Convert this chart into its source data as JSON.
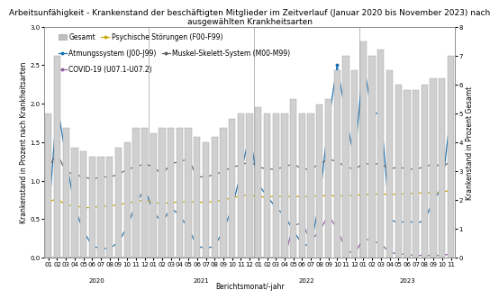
{
  "title": "Arbeitsunfähigkeit - Krankenstand der beschäftigten Mitglieder im Zeitverlauf (Januar 2020 bis November 2023) nach\nausgewählten Krankheitsarten",
  "xlabel": "Berichtsmonat/-jahr",
  "ylabel_left": "Krankenstand in Prozent nach Krankheitsarten",
  "ylabel_right": "Krankenstand in Prozent Gesamt",
  "ylim_left": [
    0.0,
    3.0
  ],
  "ylim_right": [
    0.0,
    8.0
  ],
  "yticks_left": [
    0.0,
    0.5,
    1.0,
    1.5,
    2.0,
    2.5,
    3.0
  ],
  "yticks_right": [
    0.0,
    1.0,
    2.0,
    3.0,
    4.0,
    5.0,
    6.0,
    7.0,
    8.0
  ],
  "bar_color": "#d0d0d0",
  "bar_edge_color": "#a0a0a0",
  "line_atemung_color": "#1a6faf",
  "line_psychisch_color": "#c8a800",
  "line_muskel_color": "#606060",
  "line_covid_color": "#9060a0",
  "legend_gesamt_color": "#c0c0c0",
  "gesamt": [
    5.0,
    7.0,
    4.5,
    3.8,
    3.7,
    3.5,
    3.5,
    3.5,
    3.8,
    4.0,
    4.5,
    4.5,
    4.3,
    4.5,
    4.5,
    4.5,
    4.5,
    4.2,
    4.0,
    4.2,
    4.5,
    4.8,
    5.0,
    5.0,
    5.2,
    5.0,
    5.0,
    5.0,
    5.5,
    5.0,
    5.0,
    5.3,
    5.5,
    6.5,
    7.0,
    6.5,
    7.5,
    7.0,
    7.2,
    6.5,
    6.0,
    5.8,
    5.8,
    6.0,
    6.2,
    6.2,
    7.0
  ],
  "atemung": [
    0.5,
    2.0,
    1.3,
    0.65,
    0.35,
    0.15,
    0.12,
    0.12,
    0.2,
    0.4,
    0.7,
    0.9,
    0.6,
    0.45,
    0.65,
    0.55,
    0.38,
    0.15,
    0.12,
    0.15,
    0.35,
    0.65,
    1.1,
    1.6,
    0.95,
    0.8,
    0.65,
    0.55,
    0.35,
    0.18,
    0.15,
    0.75,
    1.75,
    2.5,
    1.85,
    1.25,
    2.55,
    1.85,
    1.9,
    0.5,
    0.45,
    0.48,
    0.45,
    0.48,
    0.75,
    0.9,
    1.9
  ],
  "psychisch": [
    0.72,
    0.77,
    0.68,
    0.68,
    0.65,
    0.65,
    0.67,
    0.67,
    0.69,
    0.71,
    0.73,
    0.75,
    0.72,
    0.7,
    0.72,
    0.72,
    0.73,
    0.72,
    0.72,
    0.73,
    0.75,
    0.78,
    0.8,
    0.82,
    0.79,
    0.79,
    0.8,
    0.79,
    0.8,
    0.79,
    0.8,
    0.8,
    0.81,
    0.8,
    0.81,
    0.81,
    0.82,
    0.82,
    0.83,
    0.82,
    0.83,
    0.83,
    0.84,
    0.84,
    0.85,
    0.85,
    0.88
  ],
  "muskel": [
    1.18,
    1.35,
    1.12,
    1.08,
    1.05,
    1.02,
    1.05,
    1.05,
    1.08,
    1.15,
    1.18,
    1.22,
    1.18,
    1.08,
    1.22,
    1.25,
    1.28,
    1.05,
    1.05,
    1.08,
    1.12,
    1.18,
    1.2,
    1.25,
    1.18,
    1.15,
    1.15,
    1.18,
    1.22,
    1.15,
    1.15,
    1.22,
    1.28,
    1.25,
    1.18,
    1.15,
    1.22,
    1.22,
    1.22,
    1.15,
    1.18,
    1.15,
    1.15,
    1.18,
    1.22,
    1.18,
    1.25
  ],
  "covid": [
    0.0,
    0.0,
    0.0,
    0.0,
    0.0,
    0.0,
    0.0,
    0.0,
    0.0,
    0.0,
    0.0,
    0.0,
    0.0,
    0.0,
    0.0,
    0.0,
    0.0,
    0.0,
    0.0,
    0.0,
    0.0,
    0.0,
    0.0,
    0.0,
    0.0,
    0.0,
    0.0,
    0.0,
    0.42,
    0.45,
    0.22,
    0.35,
    0.55,
    0.38,
    0.1,
    0.05,
    0.25,
    0.22,
    0.18,
    0.07,
    0.05,
    0.04,
    0.03,
    0.03,
    0.03,
    0.03,
    0.05
  ],
  "tick_labels": [
    "01",
    "02",
    "03",
    "04",
    "05",
    "06",
    "07",
    "08",
    "09",
    "10",
    "11",
    "12",
    "01",
    "02",
    "03",
    "04",
    "05",
    "06",
    "07",
    "08",
    "09",
    "10",
    "11",
    "12",
    "01",
    "02",
    "03",
    "04",
    "05",
    "06",
    "07",
    "08",
    "09",
    "10",
    "11",
    "12",
    "01",
    "02",
    "03",
    "04",
    "05",
    "06",
    "07",
    "08",
    "09",
    "10",
    "11"
  ],
  "years": [
    "2020",
    "2021",
    "2022",
    "2023"
  ],
  "year_starts": [
    0,
    12,
    24,
    36
  ],
  "year_ends": [
    11,
    23,
    35,
    46
  ],
  "title_fontsize": 6.5,
  "axis_label_fontsize": 5.5,
  "tick_fontsize": 5.0,
  "legend_fontsize": 5.5
}
